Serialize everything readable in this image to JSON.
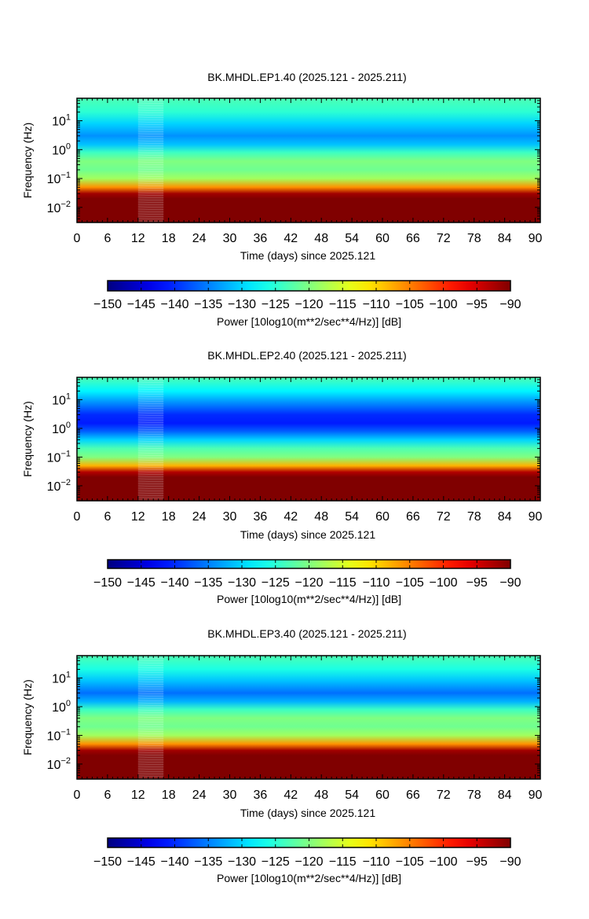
{
  "panels": [
    {
      "title": "BK.MHDL.EP1.40 (2025.121 - 2025.211)",
      "xlabel": "Time (days) since 2025.121",
      "ylabel": "Frequency (Hz)",
      "x_ticks": [
        "0",
        "6",
        "12",
        "18",
        "24",
        "30",
        "36",
        "42",
        "48",
        "54",
        "60",
        "66",
        "72",
        "78",
        "84",
        "90"
      ],
      "y_ticks": [
        {
          "base": "10",
          "exp": "1"
        },
        {
          "base": "10",
          "exp": "0"
        },
        {
          "base": "10",
          "exp": "−1"
        },
        {
          "base": "10",
          "exp": "−2"
        }
      ],
      "colorbar_label": "Power [10log10(m**2/sec**4/Hz)] [dB]",
      "colorbar_ticks": [
        "−150",
        "−145",
        "−140",
        "−135",
        "−130",
        "−125",
        "−120",
        "−115",
        "−110",
        "−105",
        "−100",
        "−95",
        "−90"
      ]
    },
    {
      "title": "BK.MHDL.EP2.40 (2025.121 - 2025.211)",
      "xlabel": "Time (days) since 2025.121",
      "ylabel": "Frequency (Hz)",
      "x_ticks": [
        "0",
        "6",
        "12",
        "18",
        "24",
        "30",
        "36",
        "42",
        "48",
        "54",
        "60",
        "66",
        "72",
        "78",
        "84",
        "90"
      ],
      "y_ticks": [
        {
          "base": "10",
          "exp": "1"
        },
        {
          "base": "10",
          "exp": "0"
        },
        {
          "base": "10",
          "exp": "−1"
        },
        {
          "base": "10",
          "exp": "−2"
        }
      ],
      "colorbar_label": "Power [10log10(m**2/sec**4/Hz)] [dB]",
      "colorbar_ticks": [
        "−150",
        "−145",
        "−140",
        "−135",
        "−130",
        "−125",
        "−120",
        "−115",
        "−110",
        "−105",
        "−100",
        "−95",
        "−90"
      ]
    },
    {
      "title": "BK.MHDL.EP3.40 (2025.121 - 2025.211)",
      "xlabel": "Time (days) since 2025.121",
      "ylabel": "Frequency (Hz)",
      "x_ticks": [
        "0",
        "6",
        "12",
        "18",
        "24",
        "30",
        "36",
        "42",
        "48",
        "54",
        "60",
        "66",
        "72",
        "78",
        "84",
        "90"
      ],
      "y_ticks": [
        {
          "base": "10",
          "exp": "1"
        },
        {
          "base": "10",
          "exp": "0"
        },
        {
          "base": "10",
          "exp": "−1"
        },
        {
          "base": "10",
          "exp": "−2"
        }
      ],
      "colorbar_label": "Power [10log10(m**2/sec**4/Hz)] [dB]",
      "colorbar_ticks": [
        "−150",
        "−145",
        "−140",
        "−135",
        "−130",
        "−125",
        "−120",
        "−115",
        "−110",
        "−105",
        "−100",
        "−95",
        "−90"
      ]
    }
  ],
  "chart_data": [
    {
      "type": "heatmap",
      "title": "BK.MHDL.EP1.40 (2025.121 - 2025.211)",
      "xlabel": "Time (days) since 2025.121",
      "ylabel": "Frequency (Hz)",
      "xlim": [
        0,
        91
      ],
      "ylim": [
        0.003,
        60
      ],
      "y_scale": "log",
      "colorbar": {
        "label": "Power [10log10(m**2/sec**4/Hz)] [dB]",
        "range": [
          -150,
          -90
        ],
        "colormap": "jet"
      },
      "power_profile": {
        "frequency_hz": [
          60,
          20,
          8,
          3,
          1.5,
          0.8,
          0.4,
          0.2,
          0.1,
          0.05,
          0.03,
          0.02,
          0.003
        ],
        "power_db": [
          -123,
          -125,
          -130,
          -134,
          -131,
          -124,
          -120,
          -121,
          -118,
          -106,
          -92,
          -90,
          -90
        ]
      },
      "data_gap_days": [
        12,
        17
      ],
      "grid": false,
      "legend": "none"
    },
    {
      "type": "heatmap",
      "title": "BK.MHDL.EP2.40 (2025.121 - 2025.211)",
      "xlabel": "Time (days) since 2025.121",
      "ylabel": "Frequency (Hz)",
      "xlim": [
        0,
        91
      ],
      "ylim": [
        0.003,
        60
      ],
      "y_scale": "log",
      "colorbar": {
        "label": "Power [10log10(m**2/sec**4/Hz)] [dB]",
        "range": [
          -150,
          -90
        ],
        "colormap": "jet"
      },
      "power_profile": {
        "frequency_hz": [
          60,
          20,
          8,
          3,
          1.5,
          0.8,
          0.4,
          0.2,
          0.1,
          0.05,
          0.03,
          0.02,
          0.003
        ],
        "power_db": [
          -123,
          -128,
          -134,
          -140,
          -141,
          -137,
          -130,
          -123,
          -120,
          -108,
          -93,
          -90,
          -90
        ]
      },
      "data_gap_days": [
        12,
        17
      ],
      "grid": false,
      "legend": "none"
    },
    {
      "type": "heatmap",
      "title": "BK.MHDL.EP3.40 (2025.121 - 2025.211)",
      "xlabel": "Time (days) since 2025.121",
      "ylabel": "Frequency (Hz)",
      "xlim": [
        0,
        91
      ],
      "ylim": [
        0.003,
        60
      ],
      "y_scale": "log",
      "colorbar": {
        "label": "Power [10log10(m**2/sec**4/Hz)] [dB]",
        "range": [
          -150,
          -90
        ],
        "colormap": "jet"
      },
      "power_profile": {
        "frequency_hz": [
          60,
          20,
          8,
          3,
          1.5,
          0.8,
          0.4,
          0.2,
          0.1,
          0.05,
          0.03,
          0.02,
          0.003
        ],
        "power_db": [
          -123,
          -126,
          -131,
          -136,
          -132,
          -124,
          -120,
          -121,
          -118,
          -106,
          -92,
          -90,
          -90
        ]
      },
      "data_gap_days": [
        12,
        17
      ],
      "grid": false,
      "legend": "none"
    }
  ]
}
